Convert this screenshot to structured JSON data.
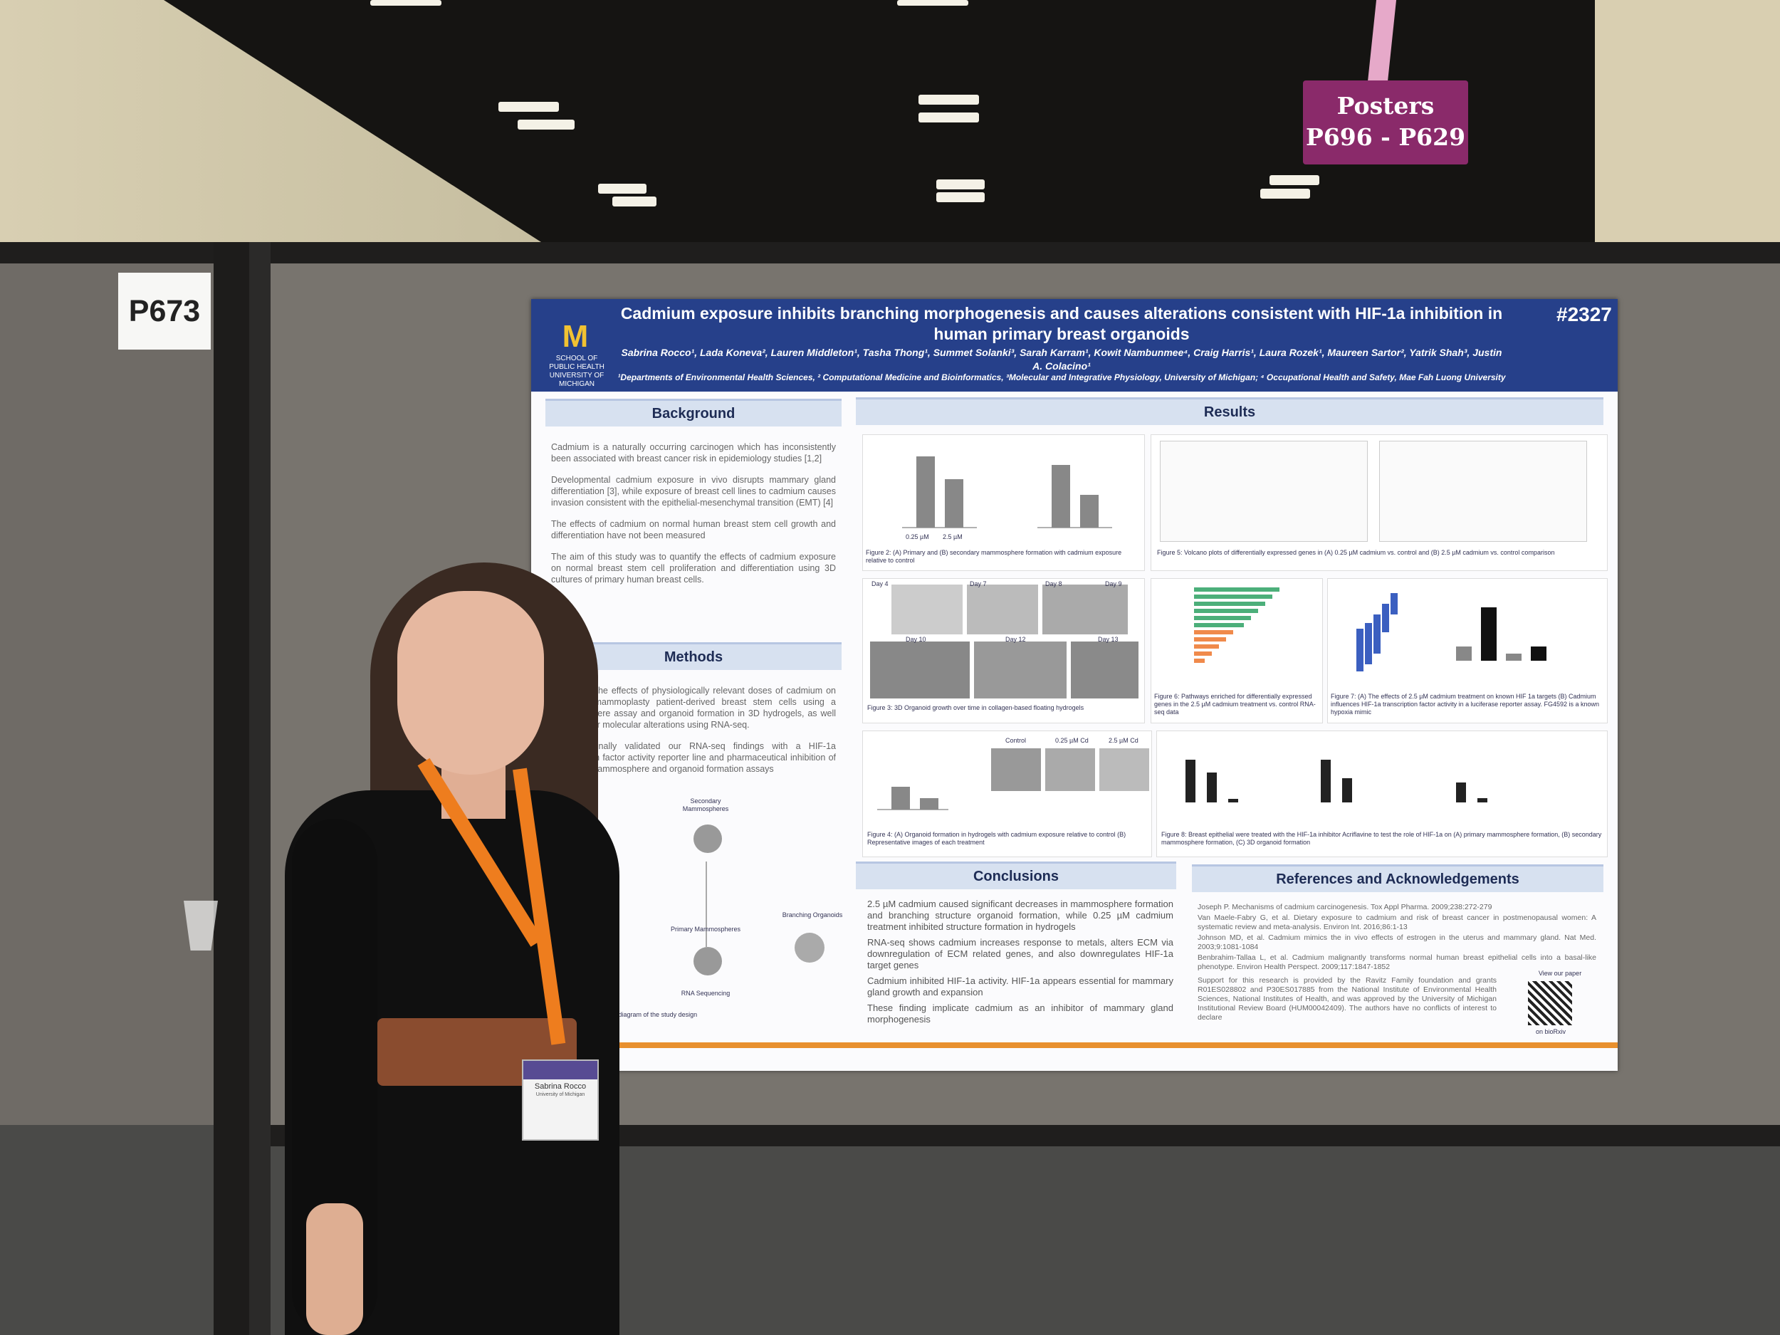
{
  "hall": {
    "sign": {
      "line1": "Posters",
      "line2": "P696 - P629"
    },
    "board_label": "P673"
  },
  "poster": {
    "title": "Cadmium exposure inhibits branching morphogenesis and causes alterations consistent with HIF-1a inhibition in human primary breast organoids",
    "number": "#2327",
    "logo": "M",
    "school": "SCHOOL OF PUBLIC HEALTH UNIVERSITY OF MICHIGAN",
    "authors": "Sabrina Rocco¹, Lada Koneva², Lauren Middleton¹, Tasha Thong¹, Summet Solanki³, Sarah Karram¹, Kowit Nambunmee⁴, Craig Harris¹, Laura Rozek¹, Maureen Sartor², Yatrik Shah³, Justin A. Colacino¹",
    "affiliations": "¹Departments of Environmental Health Sciences, ² Computational Medicine and Bioinformatics, ³Molecular and Integrative Physiology, University of Michigan; ⁴ Occupational Health and Safety, Mae Fah Luong University",
    "background": {
      "heading": "Background",
      "bullets": [
        "Cadmium is a naturally occurring carcinogen which has inconsistently been associated with breast cancer risk in epidemiology studies [1,2]",
        "Developmental cadmium exposure in vivo disrupts mammary gland differentiation [3], while exposure of breast cell lines to cadmium causes invasion consistent with the epithelial-mesenchymal transition (EMT) [4]",
        "The effects of cadmium on normal human breast stem cell growth and differentiation have not been measured",
        "The aim of this study was to quantify the effects of cadmium exposure on normal breast stem cell proliferation and differentiation using 3D cultures of primary human breast cells."
      ]
    },
    "methods": {
      "heading": "Methods",
      "bullets": [
        "We tested the effects of physiologically relevant doses of cadmium on reduction mammoplasty patient-derived breast stem cells using a mammosphere assay and organoid formation in 3D hydrogels, as well as tested for molecular alterations using RNA-seq.",
        "We functionally validated our RNA-seq findings with a HIF-1a transcription factor activity reporter line and pharmaceutical inhibition of HIF-1a in mammosphere and organoid formation assays"
      ],
      "diagram_labels": [
        "Secondary Mammospheres",
        "Primary Mammospheres",
        "Branching Organoids",
        "RNA Sequencing"
      ],
      "caption": "Figure 1: Schematic diagram of the study design"
    },
    "results": {
      "heading": "Results",
      "fig2_caption": "Figure 2: (A) Primary and (B) secondary mammosphere formation with cadmium exposure relative to control",
      "fig2_xlabels": [
        "0.25 µM",
        "2.5 µM"
      ],
      "fig3_caption": "Figure 3: 3D Organoid growth over time in collagen-based floating hydrogels",
      "fig3_days": [
        "Day 4",
        "Day 7",
        "Day 8",
        "Day 9",
        "Day 10",
        "Day 12",
        "Day 13"
      ],
      "fig4_caption": "Figure 4: (A) Organoid formation in hydrogels with cadmium exposure relative to control (B) Representative images of each treatment",
      "fig4_labels": [
        "Control",
        "0.25 µM Cd",
        "2.5 µM Cd"
      ],
      "fig5_caption": "Figure 5: Volcano plots of differentially expressed genes in (A) 0.25 µM cadmium vs. control and (B) 2.5 µM cadmium vs. control comparison",
      "fig6_caption": "Figure 6: Pathways enriched for differentially expressed genes in the 2.5 µM cadmium treatment vs. control RNA-seq data",
      "fig7_caption": "Figure 7: (A) The effects of 2.5 µM cadmium treatment on known HIF 1a targets (B) Cadmium influences HIF-1a transcription factor activity in a luciferase reporter assay. FG4592 is a known hypoxia mimic",
      "fig8_caption": "Figure 8: Breast epithelial were treated with the HIF-1a inhibitor Acriflavine to test the role of HIF-1a on (A) primary mammosphere formation, (B) secondary mammosphere formation, (C) 3D organoid formation"
    },
    "conclusions": {
      "heading": "Conclusions",
      "bullets": [
        "2.5 µM cadmium caused significant decreases in mammosphere formation and branching structure organoid formation, while 0.25 µM cadmium treatment inhibited structure formation in hydrogels",
        "RNA-seq shows cadmium increases response to metals, alters ECM via downregulation of ECM related genes, and also downregulates HIF-1a target genes",
        "Cadmium inhibited HIF-1a activity. HIF-1a appears essential for mammary gland growth and expansion",
        "These finding implicate cadmium as an inhibitor of mammary gland morphogenesis"
      ]
    },
    "references": {
      "heading": "References and Acknowledgements",
      "items": [
        "Joseph P. Mechanisms of cadmium carcinogenesis. Tox Appl Pharma. 2009;238:272-279",
        "Van Maele-Fabry G, et al. Dietary exposure to cadmium and risk of breast cancer in postmenopausal women: A systematic review and meta-analysis. Environ Int. 2016;86:1-13",
        "Johnson MD, et al. Cadmium mimics the in vivo effects of estrogen in the uterus and mammary gland. Nat Med. 2003;9:1081-1084",
        "Benbrahim-Tallaa L, et al. Cadmium malignantly transforms normal human breast epithelial cells into a basal-like phenotype. Environ Health Perspect. 2009;117:1847-1852"
      ],
      "support": "Support for this research is provided by the Ravitz Family foundation and grants R01ES028802 and P30ES017885 from the National Institute of Environmental Health Sciences, National Institutes of Health, and was approved by the University of Michigan Institutional Review Board (HUM00042409). The authors have no conflicts of interest to declare",
      "qr_label_top": "View our paper",
      "qr_label_bottom": "on bioRxiv"
    }
  },
  "badge": {
    "name": "Sabrina Rocco",
    "affil": "University of Michigan"
  },
  "colors": {
    "header_blue": "#26408a",
    "accent_orange": "#e8902e",
    "sign_purple": "#8a2a6a",
    "lanyard": "#ee7d1e"
  }
}
